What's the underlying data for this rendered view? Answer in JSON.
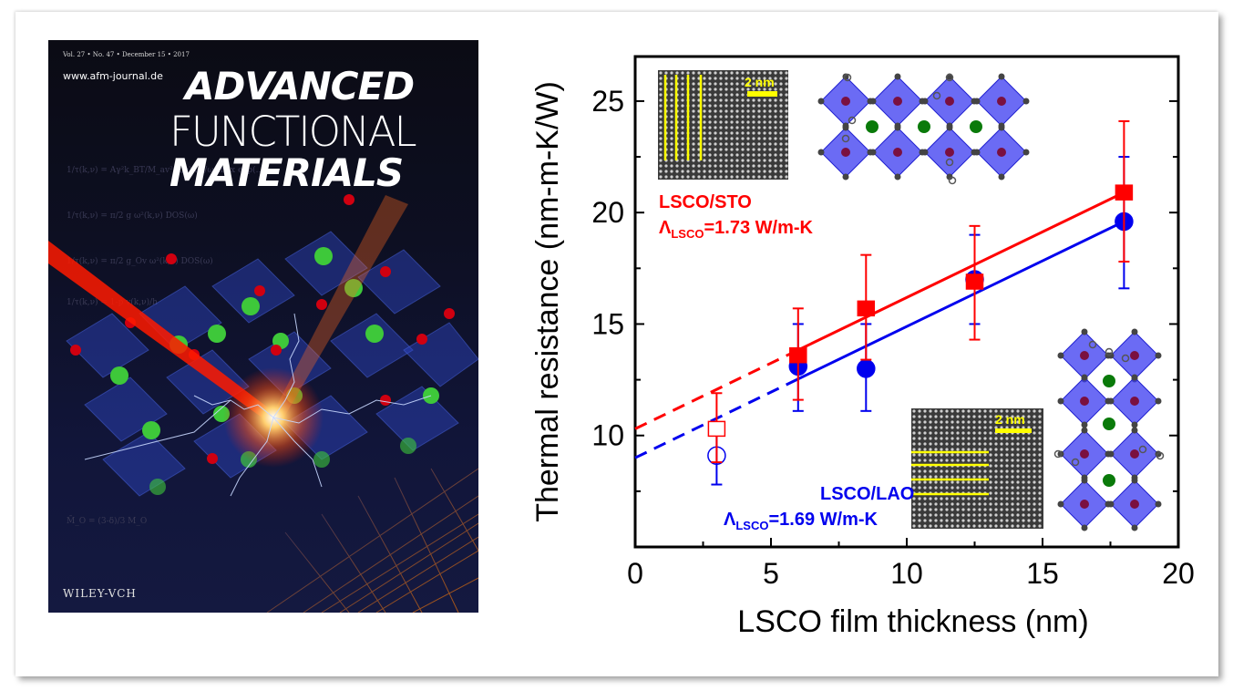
{
  "cover": {
    "issue_line": "Vol. 27 • No. 47 • December 15 • 2017",
    "url": "www.afm-journal.de",
    "title_line1": "ADVANCED",
    "title_line2": "FUNCTIONAL",
    "title_line3": "MATERIALS",
    "publisher": "WILEY-VCH"
  },
  "colors": {
    "sto": "#ff0000",
    "lao": "#0000ee",
    "octahedra": "#3a3af0",
    "scale_bar": "#ffff00"
  },
  "insets": {
    "top_scale_label": "2 nm",
    "bottom_scale_label": "2 nm"
  },
  "chart_data": {
    "type": "scatter",
    "title": "",
    "xlabel": "LSCO film thickness (nm)",
    "ylabel": "Thermal resistance (nm-m-K/W)",
    "xlim": [
      0,
      20
    ],
    "ylim": [
      5,
      27
    ],
    "xticks": [
      0,
      5,
      10,
      15,
      20
    ],
    "yticks": [
      10,
      15,
      20,
      25
    ],
    "grid": false,
    "series": [
      {
        "name": "LSCO/STO",
        "annotation": "LSCO/STO",
        "conductivity_label": "=1.73 W/m-K",
        "symbol": "square",
        "color": "#ff0000",
        "points": [
          {
            "x": 3,
            "y": 10.3,
            "err_low": 8.8,
            "err_high": 11.9,
            "filled": false
          },
          {
            "x": 6,
            "y": 13.6,
            "err_low": 11.6,
            "err_high": 15.7,
            "filled": true
          },
          {
            "x": 8.5,
            "y": 15.7,
            "err_low": 13.4,
            "err_high": 18.1,
            "filled": true
          },
          {
            "x": 12.5,
            "y": 16.9,
            "err_low": 14.3,
            "err_high": 19.4,
            "filled": true
          },
          {
            "x": 18,
            "y": 20.9,
            "err_low": 17.8,
            "err_high": 24.1,
            "filled": true
          }
        ],
        "fit": {
          "intercept": 10.3,
          "slope": 0.589,
          "dashed_range": [
            0,
            6
          ],
          "solid_range": [
            6,
            18
          ]
        }
      },
      {
        "name": "LSCO/LAO",
        "annotation": "LSCO/LAO",
        "conductivity_label": "=1.69 W/m-K",
        "symbol": "circle",
        "color": "#0000ee",
        "points": [
          {
            "x": 3,
            "y": 9.1,
            "err_low": 7.8,
            "err_high": 10.3,
            "filled": false
          },
          {
            "x": 6,
            "y": 13.1,
            "err_low": 11.1,
            "err_high": 15.0,
            "filled": true
          },
          {
            "x": 8.5,
            "y": 13.0,
            "err_low": 11.1,
            "err_high": 15.0,
            "filled": true
          },
          {
            "x": 12.5,
            "y": 17.0,
            "err_low": 15.0,
            "err_high": 19.0,
            "filled": true
          },
          {
            "x": 18,
            "y": 19.6,
            "err_low": 16.6,
            "err_high": 22.5,
            "filled": true
          }
        ],
        "fit": {
          "intercept": 9.0,
          "slope": 0.589,
          "dashed_range": [
            0,
            6
          ],
          "solid_range": [
            6,
            18
          ]
        }
      }
    ],
    "lambda_symbol": "Λ",
    "lambda_subscript": "LSCO"
  }
}
